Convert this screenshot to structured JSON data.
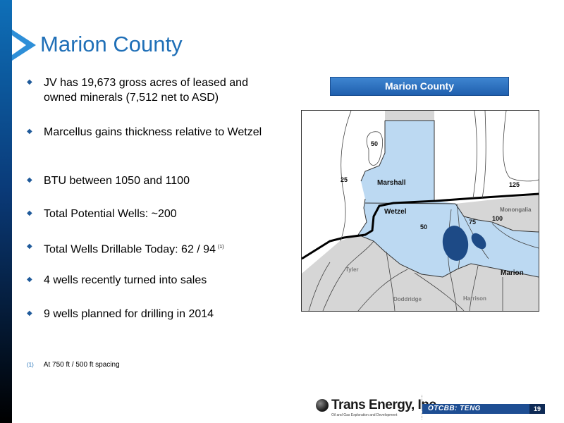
{
  "slide": {
    "title": "Marion County",
    "page_number": "19"
  },
  "bullets": [
    {
      "text": "JV has 19,673 gross acres of leased and owned minerals (7,512 net to ASD)",
      "footnote_ref": ""
    },
    {
      "text": "Marcellus gains thickness relative to Wetzel",
      "footnote_ref": ""
    },
    {
      "text": "BTU between 1050 and 1100",
      "footnote_ref": ""
    },
    {
      "text": "Total Potential Wells: ~200",
      "footnote_ref": ""
    },
    {
      "text": "Total Wells Drillable Today: 62 / 94",
      "footnote_ref": "(1)"
    },
    {
      "text": "4 wells recently turned into sales",
      "footnote_ref": ""
    },
    {
      "text": "9 wells planned for drilling in 2014",
      "footnote_ref": ""
    }
  ],
  "footnote": {
    "number": "(1)",
    "text": "At 750 ft / 500 ft spacing"
  },
  "map": {
    "header": "Marion County",
    "county_labels": {
      "marshall": "Marshall",
      "wetzel": "Wetzel",
      "monongalia": "Monongalia",
      "marion": "Marion",
      "tyler": "Tyler",
      "doddridge": "Doddridge",
      "harrison": "Harrison"
    },
    "contour_labels": {
      "c50a": "50",
      "c25": "25",
      "c125": "125",
      "c75": "75",
      "c100": "100",
      "c50b": "50"
    },
    "colors": {
      "lease": "#bcd9f2",
      "outside": "#d6d6d6",
      "marker": "#1d4a86"
    }
  },
  "branding": {
    "company": "Trans Energy, Inc.",
    "tagline": "Oil and Gas Exploration and Development",
    "ticker": "OTCBB: TENG"
  }
}
